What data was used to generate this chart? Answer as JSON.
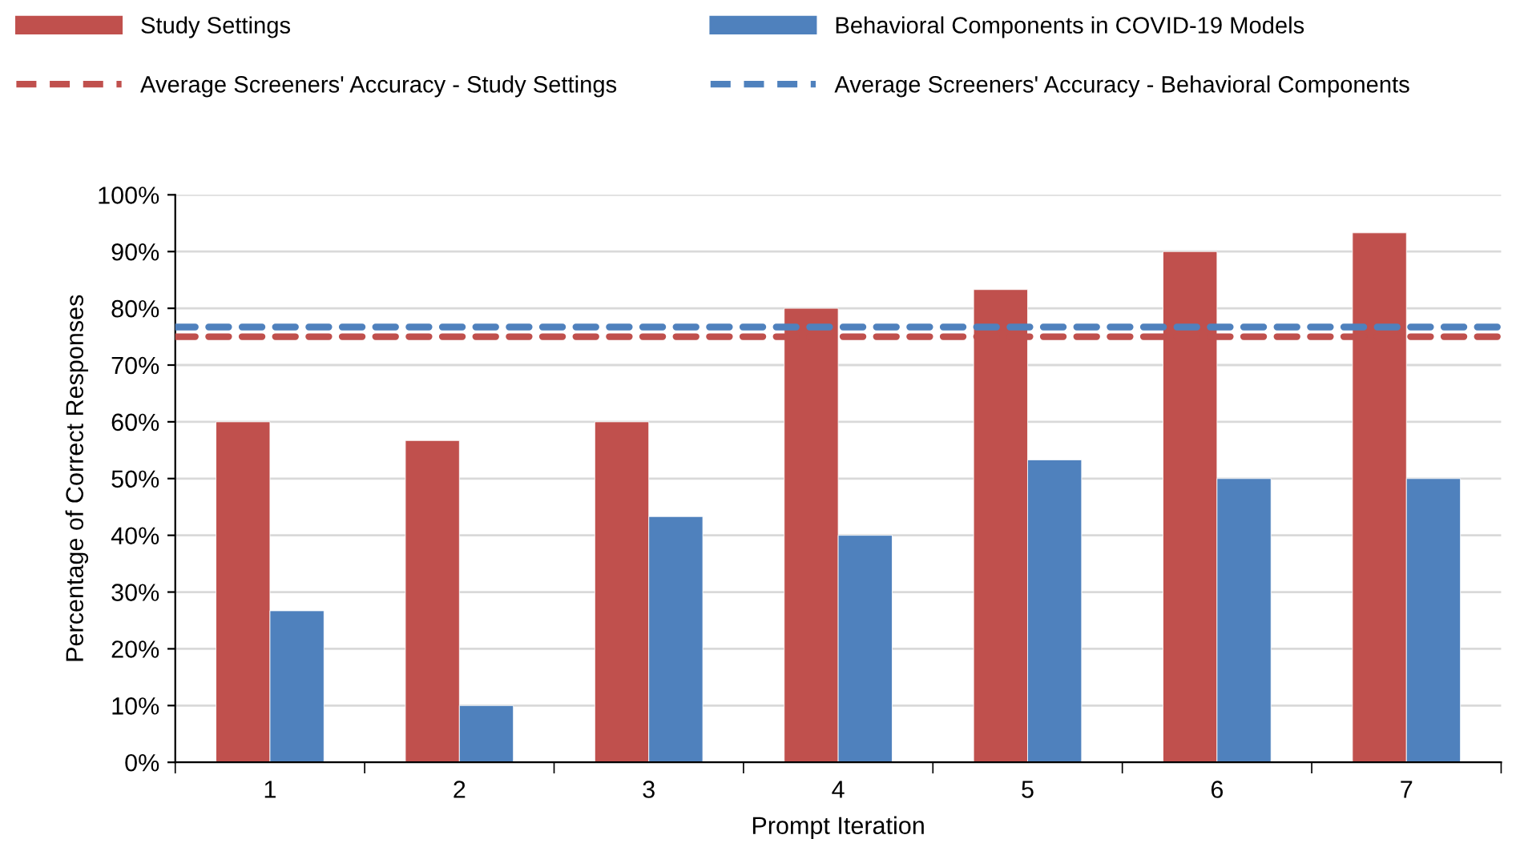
{
  "chart_data": {
    "type": "bar",
    "xlabel": "Prompt Iteration",
    "ylabel": "Percentage of Correct Responses",
    "categories": [
      "1",
      "2",
      "3",
      "4",
      "5",
      "6",
      "7"
    ],
    "series": [
      {
        "name": "Study Settings",
        "color": "#c0504d",
        "values": [
          60,
          56.7,
          60,
          80,
          83.3,
          90,
          93.3
        ]
      },
      {
        "name": "Behavioral Components in COVID-19 Models",
        "color": "#4f81bd",
        "values": [
          26.7,
          10,
          43.3,
          40,
          53.3,
          50,
          50
        ]
      }
    ],
    "ref_lines": [
      {
        "axis": "y",
        "value": 75,
        "label": "Average Screeners' Accuracy - Study Settings",
        "color": "#c0504d",
        "line_style": "dashed"
      },
      {
        "axis": "y",
        "value": 76.7,
        "label": "Average Screeners' Accuracy - Behavioral Components",
        "color": "#4f81bd",
        "line_style": "dashed"
      }
    ],
    "ylim": [
      0,
      100
    ],
    "yticks": [
      {
        "value": 0,
        "label": "0%"
      },
      {
        "value": 10,
        "label": "10%"
      },
      {
        "value": 20,
        "label": "20%"
      },
      {
        "value": 30,
        "label": "30%"
      },
      {
        "value": 40,
        "label": "40%"
      },
      {
        "value": 50,
        "label": "50%"
      },
      {
        "value": 60,
        "label": "60%"
      },
      {
        "value": 70,
        "label": "70%"
      },
      {
        "value": 80,
        "label": "80%"
      },
      {
        "value": 90,
        "label": "90%"
      },
      {
        "value": 100,
        "label": "100%"
      }
    ],
    "grid": "y",
    "legend": "top"
  }
}
